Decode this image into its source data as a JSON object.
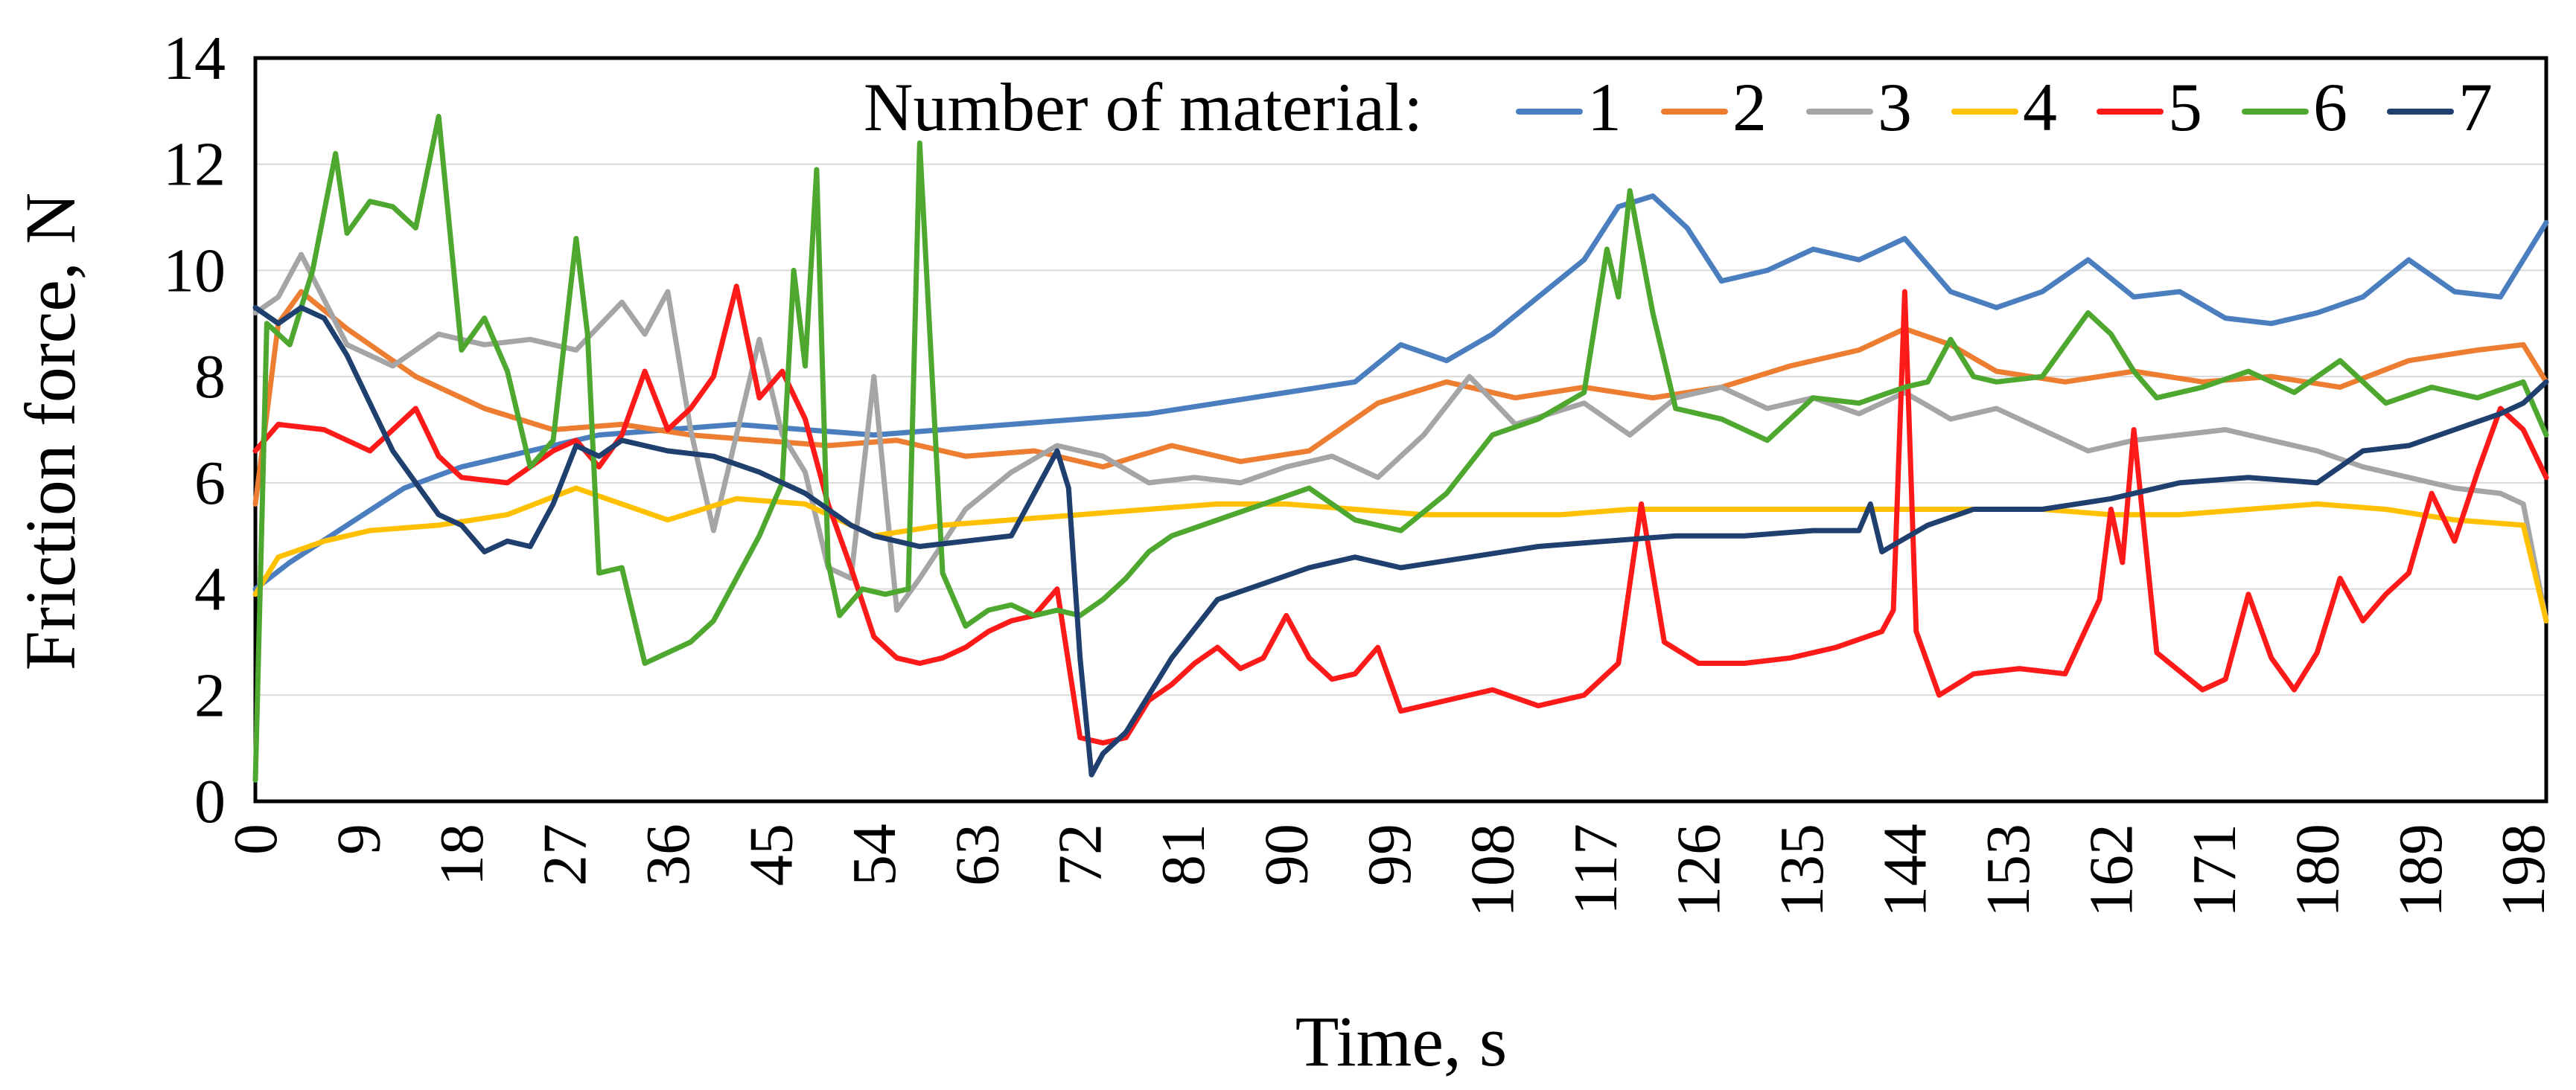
{
  "chart_data": {
    "type": "line",
    "xlabel": "Time, s",
    "ylabel": "Friction force, N",
    "xlim": [
      0,
      200
    ],
    "ylim": [
      0,
      14
    ],
    "x_ticks": [
      0,
      9,
      18,
      27,
      36,
      45,
      54,
      63,
      72,
      81,
      90,
      99,
      108,
      117,
      126,
      135,
      144,
      153,
      162,
      171,
      180,
      189,
      198
    ],
    "y_ticks": [
      0,
      2,
      4,
      6,
      8,
      10,
      12,
      14
    ],
    "grid": "horizontal",
    "legend_title": "Number of material:",
    "legend_position": "top",
    "series": [
      {
        "name": "1",
        "color": "#4a7ebf",
        "x": [
          0,
          3,
          8,
          13,
          18,
          24,
          30,
          36,
          42,
          48,
          54,
          60,
          66,
          72,
          78,
          84,
          90,
          96,
          100,
          104,
          108,
          112,
          116,
          119,
          122,
          125,
          128,
          132,
          136,
          140,
          144,
          148,
          152,
          156,
          160,
          164,
          168,
          172,
          176,
          180,
          184,
          188,
          192,
          196,
          200
        ],
        "values": [
          4.0,
          4.5,
          5.2,
          5.9,
          6.3,
          6.6,
          6.9,
          7.0,
          7.1,
          7.0,
          6.9,
          7.0,
          7.1,
          7.2,
          7.3,
          7.5,
          7.7,
          7.9,
          8.6,
          8.3,
          8.8,
          9.5,
          10.2,
          11.2,
          11.4,
          10.8,
          9.8,
          10.0,
          10.4,
          10.2,
          10.6,
          9.6,
          9.3,
          9.6,
          10.2,
          9.5,
          9.6,
          9.1,
          9.0,
          9.2,
          9.5,
          10.2,
          9.6,
          9.5,
          10.9
        ]
      },
      {
        "name": "2",
        "color": "#ed7d31",
        "x": [
          0,
          2,
          4,
          8,
          14,
          20,
          26,
          32,
          38,
          44,
          50,
          56,
          62,
          68,
          74,
          80,
          86,
          92,
          98,
          104,
          110,
          116,
          122,
          128,
          134,
          140,
          144,
          148,
          152,
          158,
          164,
          170,
          176,
          182,
          188,
          194,
          198,
          200
        ],
        "values": [
          5.6,
          9.0,
          9.6,
          8.9,
          8.0,
          7.4,
          7.0,
          7.1,
          6.9,
          6.8,
          6.7,
          6.8,
          6.5,
          6.6,
          6.3,
          6.7,
          6.4,
          6.6,
          7.5,
          7.9,
          7.6,
          7.8,
          7.6,
          7.8,
          8.2,
          8.5,
          8.9,
          8.6,
          8.1,
          7.9,
          8.1,
          7.9,
          8.0,
          7.8,
          8.3,
          8.5,
          8.6,
          7.9
        ]
      },
      {
        "name": "3",
        "color": "#a5a5a5",
        "x": [
          0,
          2,
          4,
          8,
          12,
          16,
          20,
          24,
          28,
          32,
          34,
          36,
          38,
          40,
          42,
          44,
          46,
          48,
          50,
          52,
          54,
          56,
          58,
          62,
          66,
          70,
          74,
          78,
          82,
          86,
          90,
          94,
          98,
          102,
          106,
          110,
          116,
          120,
          124,
          128,
          132,
          136,
          140,
          144,
          148,
          152,
          156,
          160,
          164,
          168,
          172,
          176,
          180,
          184,
          188,
          192,
          196,
          198,
          200
        ],
        "values": [
          9.2,
          9.5,
          10.3,
          8.6,
          8.2,
          8.8,
          8.6,
          8.7,
          8.5,
          9.4,
          8.8,
          9.6,
          7.0,
          5.1,
          6.9,
          8.7,
          6.9,
          6.2,
          4.4,
          4.2,
          8.0,
          3.6,
          4.2,
          5.5,
          6.2,
          6.7,
          6.5,
          6.0,
          6.1,
          6.0,
          6.3,
          6.5,
          6.1,
          6.9,
          8.0,
          7.1,
          7.5,
          6.9,
          7.6,
          7.8,
          7.4,
          7.6,
          7.3,
          7.7,
          7.2,
          7.4,
          7.0,
          6.6,
          6.8,
          6.9,
          7.0,
          6.8,
          6.6,
          6.3,
          6.1,
          5.9,
          5.8,
          5.6,
          3.4
        ]
      },
      {
        "name": "4",
        "color": "#ffc000",
        "x": [
          0,
          2,
          6,
          10,
          16,
          22,
          28,
          32,
          36,
          42,
          48,
          54,
          60,
          66,
          72,
          78,
          84,
          90,
          96,
          102,
          108,
          114,
          120,
          126,
          132,
          138,
          144,
          150,
          156,
          162,
          168,
          174,
          180,
          186,
          192,
          198,
          200
        ],
        "values": [
          3.9,
          4.6,
          4.9,
          5.1,
          5.2,
          5.4,
          5.9,
          5.6,
          5.3,
          5.7,
          5.6,
          5.0,
          5.2,
          5.3,
          5.4,
          5.5,
          5.6,
          5.6,
          5.5,
          5.4,
          5.4,
          5.4,
          5.5,
          5.5,
          5.5,
          5.5,
          5.5,
          5.5,
          5.5,
          5.4,
          5.4,
          5.5,
          5.6,
          5.5,
          5.3,
          5.2,
          3.4
        ]
      },
      {
        "name": "5",
        "color": "#ff1a1a",
        "x": [
          0,
          2,
          6,
          10,
          14,
          16,
          18,
          22,
          26,
          28,
          30,
          32,
          34,
          36,
          38,
          40,
          42,
          44,
          46,
          48,
          50,
          52,
          54,
          56,
          58,
          60,
          62,
          64,
          66,
          68,
          70,
          72,
          74,
          76,
          78,
          80,
          82,
          84,
          86,
          88,
          90,
          92,
          94,
          96,
          98,
          100,
          104,
          108,
          112,
          116,
          119,
          121,
          123,
          126,
          130,
          134,
          138,
          142,
          143,
          144,
          145,
          147,
          150,
          154,
          158,
          161,
          162,
          163,
          164,
          166,
          170,
          172,
          174,
          176,
          178,
          180,
          182,
          184,
          186,
          188,
          190,
          192,
          194,
          196,
          198,
          200
        ],
        "values": [
          6.6,
          7.1,
          7.0,
          6.6,
          7.4,
          6.5,
          6.1,
          6.0,
          6.6,
          6.8,
          6.3,
          6.9,
          8.1,
          7.0,
          7.4,
          8.0,
          9.7,
          7.6,
          8.1,
          7.2,
          5.6,
          4.4,
          3.1,
          2.7,
          2.6,
          2.7,
          2.9,
          3.2,
          3.4,
          3.5,
          4.0,
          1.2,
          1.1,
          1.2,
          1.9,
          2.2,
          2.6,
          2.9,
          2.5,
          2.7,
          3.5,
          2.7,
          2.3,
          2.4,
          2.9,
          1.7,
          1.9,
          2.1,
          1.8,
          2.0,
          2.6,
          5.6,
          3.0,
          2.6,
          2.6,
          2.7,
          2.9,
          3.2,
          3.6,
          9.6,
          3.2,
          2.0,
          2.4,
          2.5,
          2.4,
          3.8,
          5.5,
          4.5,
          7.0,
          2.8,
          2.1,
          2.3,
          3.9,
          2.7,
          2.1,
          2.8,
          4.2,
          3.4,
          3.9,
          4.3,
          5.8,
          4.9,
          6.2,
          7.4,
          7.0,
          6.1
        ]
      },
      {
        "name": "6",
        "color": "#4ea72e",
        "x": [
          0,
          1,
          3,
          5,
          7,
          8,
          10,
          12,
          14,
          16,
          18,
          20,
          22,
          24,
          26,
          28,
          29,
          30,
          32,
          34,
          36,
          38,
          40,
          42,
          44,
          46,
          47,
          48,
          49,
          50,
          51,
          53,
          55,
          57,
          58,
          60,
          62,
          64,
          66,
          68,
          70,
          72,
          74,
          76,
          78,
          80,
          84,
          88,
          92,
          96,
          100,
          104,
          108,
          112,
          116,
          118,
          119,
          120,
          122,
          124,
          128,
          132,
          136,
          140,
          144,
          146,
          148,
          150,
          152,
          156,
          160,
          162,
          164,
          166,
          170,
          174,
          178,
          182,
          186,
          190,
          194,
          198,
          200
        ],
        "values": [
          0.4,
          9.0,
          8.6,
          10.0,
          12.2,
          10.7,
          11.3,
          11.2,
          10.8,
          12.9,
          8.5,
          9.1,
          8.1,
          6.3,
          6.8,
          10.6,
          8.8,
          4.3,
          4.4,
          2.6,
          2.8,
          3.0,
          3.4,
          4.2,
          5.0,
          6.0,
          10.0,
          8.2,
          11.9,
          4.5,
          3.5,
          4.0,
          3.9,
          4.0,
          12.4,
          4.3,
          3.3,
          3.6,
          3.7,
          3.5,
          3.6,
          3.5,
          3.8,
          4.2,
          4.7,
          5.0,
          5.3,
          5.6,
          5.9,
          5.3,
          5.1,
          5.8,
          6.9,
          7.2,
          7.7,
          10.4,
          9.5,
          11.5,
          9.2,
          7.4,
          7.2,
          6.8,
          7.6,
          7.5,
          7.8,
          7.9,
          8.7,
          8.0,
          7.9,
          8.0,
          9.2,
          8.8,
          8.1,
          7.6,
          7.8,
          8.1,
          7.7,
          8.3,
          7.5,
          7.8,
          7.6,
          7.9,
          6.9
        ]
      },
      {
        "name": "7",
        "color": "#1f3f6e",
        "x": [
          0,
          2,
          4,
          6,
          8,
          12,
          16,
          18,
          20,
          22,
          24,
          26,
          28,
          30,
          32,
          36,
          40,
          44,
          48,
          52,
          54,
          58,
          62,
          66,
          70,
          71,
          72,
          73,
          74,
          76,
          78,
          80,
          84,
          88,
          92,
          96,
          100,
          106,
          112,
          118,
          124,
          130,
          136,
          140,
          141,
          142,
          146,
          150,
          156,
          162,
          168,
          174,
          180,
          184,
          188,
          192,
          196,
          198,
          200
        ],
        "values": [
          9.3,
          9.0,
          9.3,
          9.1,
          8.4,
          6.6,
          5.4,
          5.2,
          4.7,
          4.9,
          4.8,
          5.6,
          6.7,
          6.5,
          6.8,
          6.6,
          6.5,
          6.2,
          5.8,
          5.2,
          5.0,
          4.8,
          4.9,
          5.0,
          6.6,
          5.9,
          2.7,
          0.5,
          0.9,
          1.3,
          2.0,
          2.7,
          3.8,
          4.1,
          4.4,
          4.6,
          4.4,
          4.6,
          4.8,
          4.9,
          5.0,
          5.0,
          5.1,
          5.1,
          5.6,
          4.7,
          5.2,
          5.5,
          5.5,
          5.7,
          6.0,
          6.1,
          6.0,
          6.6,
          6.7,
          7.0,
          7.3,
          7.5,
          7.9
        ]
      }
    ]
  }
}
